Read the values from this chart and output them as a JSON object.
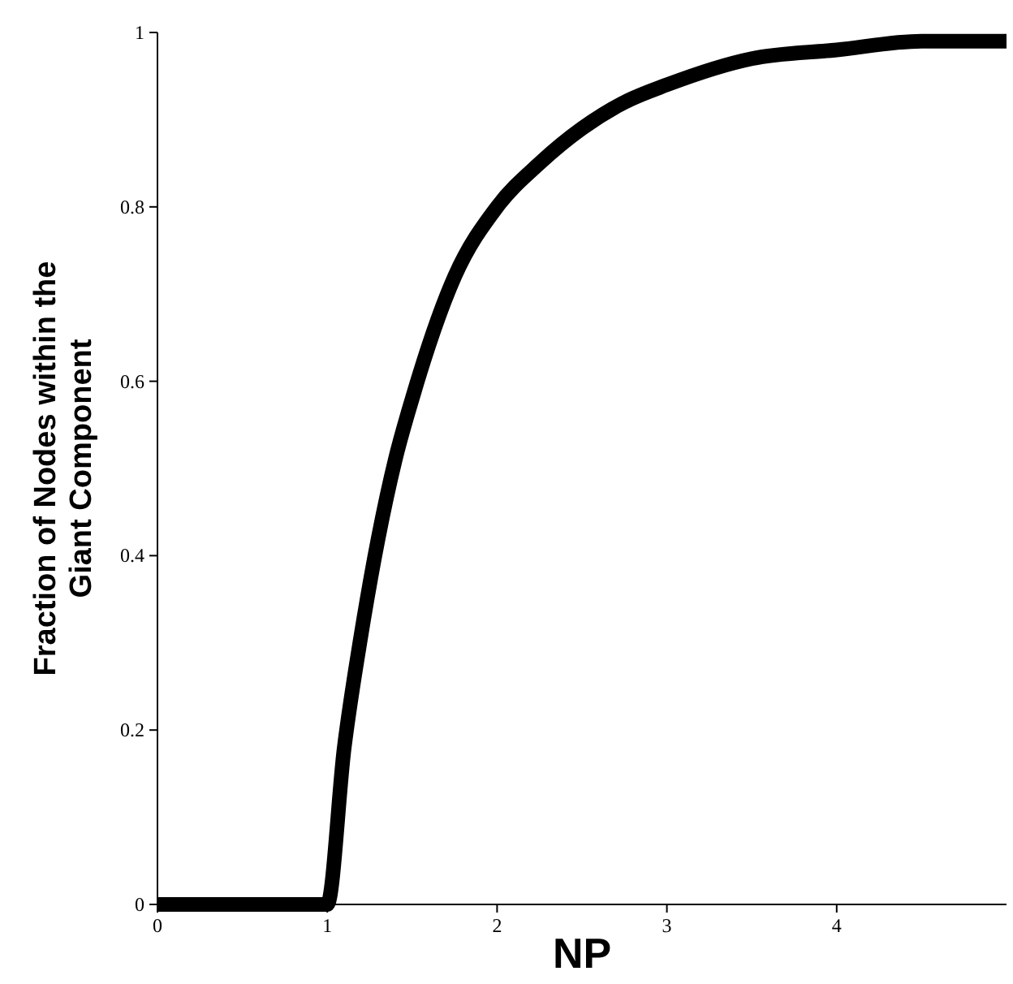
{
  "chart_data": {
    "type": "line",
    "xlabel": "NP",
    "ylabel": "Fraction of Nodes within the Giant Component",
    "x": [
      0,
      0.5,
      1,
      1.1,
      1.2,
      1.3,
      1.4,
      1.5,
      1.75,
      2,
      2.25,
      2.5,
      2.75,
      3,
      3.5,
      4,
      4.5,
      5
    ],
    "series": [
      {
        "color": "#000000",
        "values": [
          0,
          0,
          0,
          0.18,
          0.31,
          0.42,
          0.51,
          0.58,
          0.72,
          0.8,
          0.85,
          0.89,
          0.92,
          0.94,
          0.97,
          0.98,
          0.99,
          0.99
        ]
      }
    ],
    "xlim": [
      0,
      5
    ],
    "xticks": [
      0,
      1,
      2,
      3,
      4
    ],
    "ylim": [
      0,
      1
    ],
    "yticks": [
      0,
      0.2,
      0.4,
      0.6,
      0.8,
      1
    ],
    "grid": false,
    "marker": "none",
    "line_style": "solid"
  }
}
